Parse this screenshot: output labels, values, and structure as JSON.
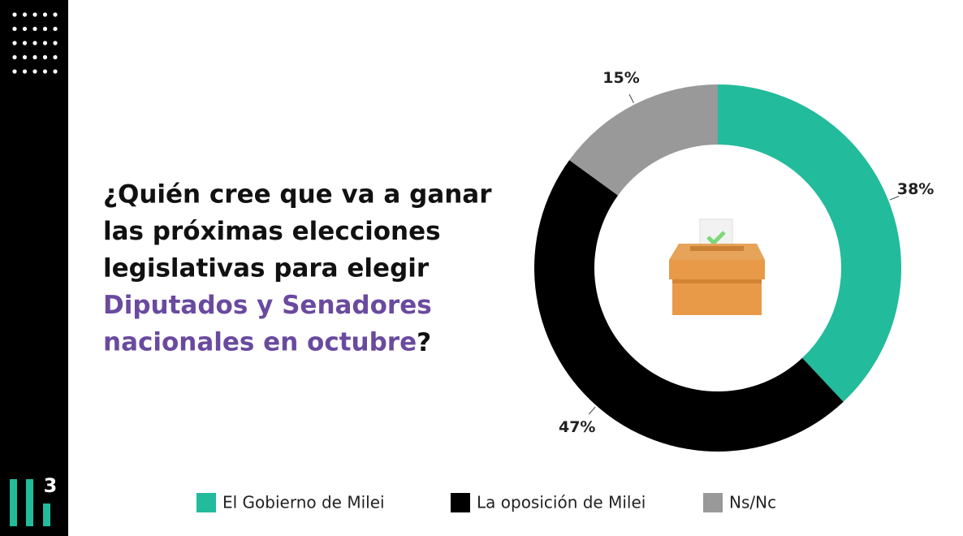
{
  "chart_data": {
    "type": "donut",
    "title_lines": [
      "¿Quién cree que va a ganar",
      "las próximas elecciones",
      "legislativas para elegir"
    ],
    "highlight_lines": [
      "Diputados y Senadores",
      "nacionales en octubre"
    ],
    "highlight_color": "#6a4a9e",
    "title_end": "?",
    "categories": [
      "El Gobierno de Milei",
      "La oposición de Milei",
      "Ns/Nc"
    ],
    "values": [
      38,
      47,
      15
    ],
    "value_labels": [
      "38%",
      "47%",
      "15%"
    ],
    "colors": [
      "#22bb9c",
      "#000000",
      "#999999"
    ]
  }
}
